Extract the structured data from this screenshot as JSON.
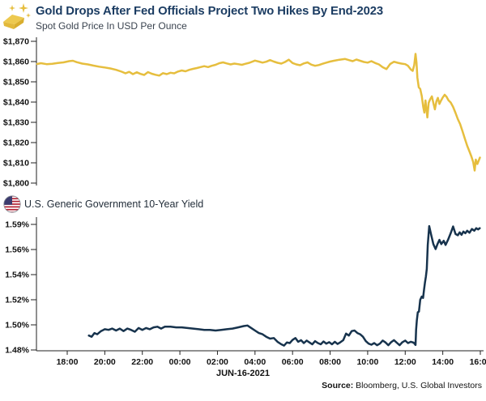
{
  "header": {
    "title": "Gold Drops After Fed Officials Project Two Hikes By End-2023",
    "subtitle": "Spot Gold Price In USD Per Ounce"
  },
  "yield_section": {
    "label": "U.S. Generic Government 10-Year Yield"
  },
  "footer": {
    "source_label": "Source:",
    "source_value": " Bloomberg, U.S. Global Investors"
  },
  "icons": {
    "gold_bar": "gold-bar-with-sparkles",
    "us_flag": "us-flag-round"
  },
  "colors": {
    "title_navy": "#1b3c62",
    "gold_line": "#E6BE3E",
    "yield_line": "#17334D",
    "axis": "#222222",
    "tick_text": "#111111",
    "flag_red": "#B22234",
    "flag_blue": "#3C3B6E"
  },
  "x_axis": {
    "tick_labels": [
      "18:00",
      "20:00",
      "22:00",
      "00:00",
      "02:00",
      "04:00",
      "06:00",
      "08:00",
      "10:00",
      "12:00",
      "14:00",
      "16:00"
    ],
    "tick_hours": [
      0,
      2,
      4,
      6,
      8,
      10,
      12,
      14,
      16,
      18,
      20,
      22
    ],
    "date_label": "JUN-16-2021",
    "note": "x unit = hours after 18:00 (prior evening); session runs to 16:00 on JUN-16-2021"
  },
  "chart_data": [
    {
      "type": "line",
      "slug": "gold-price",
      "name": "Spot Gold Price In USD Per Ounce",
      "unit": "USD per ounce",
      "color": "#E6BE3E",
      "ylim": [
        1800,
        1870
      ],
      "y_ticks": [
        {
          "label": "$1,870",
          "value": 1870
        },
        {
          "label": "$1,860",
          "value": 1860
        },
        {
          "label": "$1,850",
          "value": 1850
        },
        {
          "label": "$1,840",
          "value": 1840
        },
        {
          "label": "$1,830",
          "value": 1830
        },
        {
          "label": "$1,820",
          "value": 1820
        },
        {
          "label": "$1,810",
          "value": 1810
        },
        {
          "label": "$1,800",
          "value": 1800
        }
      ],
      "points": [
        [
          -1.6,
          1858.8
        ],
        [
          -1.4,
          1859.2
        ],
        [
          -1.1,
          1858.7
        ],
        [
          -0.8,
          1858.9
        ],
        [
          -0.5,
          1859.3
        ],
        [
          -0.2,
          1859.6
        ],
        [
          0.1,
          1860.2
        ],
        [
          0.3,
          1860.4
        ],
        [
          0.5,
          1859.7
        ],
        [
          0.8,
          1859.0
        ],
        [
          1.1,
          1858.6
        ],
        [
          1.4,
          1858.0
        ],
        [
          1.7,
          1857.5
        ],
        [
          2.0,
          1857.1
        ],
        [
          2.3,
          1856.6
        ],
        [
          2.6,
          1855.9
        ],
        [
          2.9,
          1855.0
        ],
        [
          3.1,
          1854.2
        ],
        [
          3.3,
          1854.9
        ],
        [
          3.5,
          1853.8
        ],
        [
          3.7,
          1854.7
        ],
        [
          3.9,
          1853.9
        ],
        [
          4.1,
          1853.4
        ],
        [
          4.3,
          1854.8
        ],
        [
          4.5,
          1854.0
        ],
        [
          4.7,
          1853.5
        ],
        [
          4.9,
          1853.1
        ],
        [
          5.1,
          1854.3
        ],
        [
          5.3,
          1853.8
        ],
        [
          5.5,
          1854.5
        ],
        [
          5.7,
          1854.2
        ],
        [
          5.9,
          1855.1
        ],
        [
          6.1,
          1855.6
        ],
        [
          6.3,
          1855.2
        ],
        [
          6.5,
          1855.9
        ],
        [
          6.7,
          1856.4
        ],
        [
          6.9,
          1856.8
        ],
        [
          7.1,
          1857.3
        ],
        [
          7.3,
          1857.7
        ],
        [
          7.5,
          1857.3
        ],
        [
          7.7,
          1857.9
        ],
        [
          7.9,
          1858.4
        ],
        [
          8.1,
          1859.2
        ],
        [
          8.3,
          1859.6
        ],
        [
          8.5,
          1859.1
        ],
        [
          8.7,
          1858.6
        ],
        [
          8.9,
          1859.0
        ],
        [
          9.1,
          1858.7
        ],
        [
          9.3,
          1858.4
        ],
        [
          9.5,
          1858.9
        ],
        [
          9.7,
          1859.4
        ],
        [
          10.0,
          1860.5
        ],
        [
          10.2,
          1860.0
        ],
        [
          10.4,
          1859.5
        ],
        [
          10.6,
          1859.9
        ],
        [
          10.8,
          1860.7
        ],
        [
          11.0,
          1860.0
        ],
        [
          11.2,
          1859.4
        ],
        [
          11.4,
          1859.0
        ],
        [
          11.6,
          1859.8
        ],
        [
          11.8,
          1860.9
        ],
        [
          12.0,
          1859.3
        ],
        [
          12.2,
          1858.6
        ],
        [
          12.4,
          1858.2
        ],
        [
          12.6,
          1859.1
        ],
        [
          12.8,
          1859.6
        ],
        [
          13.0,
          1858.5
        ],
        [
          13.2,
          1857.9
        ],
        [
          13.4,
          1858.3
        ],
        [
          13.6,
          1858.9
        ],
        [
          13.8,
          1859.5
        ],
        [
          14.0,
          1860.0
        ],
        [
          14.2,
          1860.4
        ],
        [
          14.5,
          1860.9
        ],
        [
          14.8,
          1861.3
        ],
        [
          15.0,
          1860.7
        ],
        [
          15.2,
          1860.2
        ],
        [
          15.4,
          1861.0
        ],
        [
          15.6,
          1860.4
        ],
        [
          15.8,
          1859.8
        ],
        [
          16.0,
          1859.5
        ],
        [
          16.2,
          1860.2
        ],
        [
          16.4,
          1859.3
        ],
        [
          16.6,
          1858.6
        ],
        [
          16.8,
          1857.2
        ],
        [
          17.0,
          1856.3
        ],
        [
          17.2,
          1858.8
        ],
        [
          17.4,
          1859.9
        ],
        [
          17.6,
          1859.4
        ],
        [
          17.8,
          1859.0
        ],
        [
          18.0,
          1858.7
        ],
        [
          18.15,
          1857.9
        ],
        [
          18.3,
          1856.1
        ],
        [
          18.4,
          1855.4
        ],
        [
          18.48,
          1858.3
        ],
        [
          18.55,
          1863.8
        ],
        [
          18.6,
          1859.5
        ],
        [
          18.65,
          1852.0
        ],
        [
          18.72,
          1847.3
        ],
        [
          18.8,
          1846.5
        ],
        [
          18.88,
          1843.0
        ],
        [
          18.96,
          1837.6
        ],
        [
          19.02,
          1834.8
        ],
        [
          19.08,
          1840.8
        ],
        [
          19.13,
          1836.2
        ],
        [
          19.18,
          1832.4
        ],
        [
          19.25,
          1839.6
        ],
        [
          19.33,
          1841.4
        ],
        [
          19.42,
          1842.8
        ],
        [
          19.5,
          1839.6
        ],
        [
          19.58,
          1836.4
        ],
        [
          19.66,
          1840.4
        ],
        [
          19.74,
          1842.1
        ],
        [
          19.82,
          1839.1
        ],
        [
          19.9,
          1840.6
        ],
        [
          20.0,
          1842.3
        ],
        [
          20.1,
          1843.6
        ],
        [
          20.2,
          1842.6
        ],
        [
          20.3,
          1840.9
        ],
        [
          20.42,
          1839.8
        ],
        [
          20.55,
          1837.6
        ],
        [
          20.68,
          1834.6
        ],
        [
          20.8,
          1831.6
        ],
        [
          20.92,
          1829.2
        ],
        [
          21.05,
          1825.6
        ],
        [
          21.18,
          1821.8
        ],
        [
          21.3,
          1818.4
        ],
        [
          21.42,
          1815.6
        ],
        [
          21.52,
          1813.2
        ],
        [
          21.62,
          1810.4
        ],
        [
          21.7,
          1806.2
        ],
        [
          21.76,
          1811.6
        ],
        [
          21.84,
          1809.4
        ],
        [
          21.92,
          1811.2
        ],
        [
          21.98,
          1812.6
        ]
      ]
    },
    {
      "type": "line",
      "slug": "ten-year-yield",
      "name": "U.S. Generic Government 10-Year Yield",
      "unit": "percent",
      "color": "#17334D",
      "ylim": [
        1.48,
        1.59
      ],
      "y_ticks": [
        {
          "label": "1.59%",
          "value": 1.59
        },
        {
          "label": "1.56%",
          "value": 1.56
        },
        {
          "label": "1.54%",
          "value": 1.54
        },
        {
          "label": "1.52%",
          "value": 1.52
        },
        {
          "label": "1.50%",
          "value": 1.5
        },
        {
          "label": "1.48%",
          "value": 1.48
        }
      ],
      "points": [
        [
          1.15,
          1.4915
        ],
        [
          1.3,
          1.4905
        ],
        [
          1.45,
          1.4935
        ],
        [
          1.6,
          1.4925
        ],
        [
          1.8,
          1.495
        ],
        [
          2.0,
          1.4965
        ],
        [
          2.2,
          1.496
        ],
        [
          2.4,
          1.497
        ],
        [
          2.6,
          1.4955
        ],
        [
          2.8,
          1.497
        ],
        [
          3.0,
          1.495
        ],
        [
          3.2,
          1.497
        ],
        [
          3.4,
          1.496
        ],
        [
          3.6,
          1.4945
        ],
        [
          3.8,
          1.4975
        ],
        [
          4.0,
          1.496
        ],
        [
          4.2,
          1.4975
        ],
        [
          4.4,
          1.4965
        ],
        [
          4.6,
          1.498
        ],
        [
          4.8,
          1.4985
        ],
        [
          5.0,
          1.497
        ],
        [
          5.2,
          1.4985
        ],
        [
          5.5,
          1.4985
        ],
        [
          5.8,
          1.498
        ],
        [
          6.1,
          1.498
        ],
        [
          6.4,
          1.4975
        ],
        [
          6.7,
          1.497
        ],
        [
          7.0,
          1.4965
        ],
        [
          7.3,
          1.496
        ],
        [
          7.6,
          1.496
        ],
        [
          7.9,
          1.4955
        ],
        [
          8.2,
          1.496
        ],
        [
          8.5,
          1.4965
        ],
        [
          8.8,
          1.497
        ],
        [
          9.1,
          1.498
        ],
        [
          9.4,
          1.499
        ],
        [
          9.6,
          1.4995
        ],
        [
          9.8,
          1.4975
        ],
        [
          10.0,
          1.4955
        ],
        [
          10.2,
          1.4935
        ],
        [
          10.4,
          1.4925
        ],
        [
          10.6,
          1.4905
        ],
        [
          10.8,
          1.489
        ],
        [
          11.0,
          1.4895
        ],
        [
          11.2,
          1.4865
        ],
        [
          11.4,
          1.4845
        ],
        [
          11.55,
          1.4835
        ],
        [
          11.7,
          1.486
        ],
        [
          11.85,
          1.4855
        ],
        [
          12.0,
          1.488
        ],
        [
          12.15,
          1.4895
        ],
        [
          12.3,
          1.4865
        ],
        [
          12.45,
          1.4878
        ],
        [
          12.6,
          1.4855
        ],
        [
          12.75,
          1.4875
        ],
        [
          12.9,
          1.486
        ],
        [
          13.05,
          1.4845
        ],
        [
          13.2,
          1.487
        ],
        [
          13.35,
          1.4855
        ],
        [
          13.5,
          1.4845
        ],
        [
          13.65,
          1.4868
        ],
        [
          13.8,
          1.485
        ],
        [
          13.95,
          1.4862
        ],
        [
          14.1,
          1.4845
        ],
        [
          14.25,
          1.4865
        ],
        [
          14.4,
          1.4848
        ],
        [
          14.55,
          1.4862
        ],
        [
          14.7,
          1.4878
        ],
        [
          14.85,
          1.493
        ],
        [
          15.0,
          1.4915
        ],
        [
          15.15,
          1.495
        ],
        [
          15.3,
          1.4955
        ],
        [
          15.45,
          1.4935
        ],
        [
          15.6,
          1.4925
        ],
        [
          15.75,
          1.4905
        ],
        [
          15.9,
          1.487
        ],
        [
          16.05,
          1.485
        ],
        [
          16.2,
          1.4842
        ],
        [
          16.35,
          1.4855
        ],
        [
          16.5,
          1.4838
        ],
        [
          16.65,
          1.485
        ],
        [
          16.8,
          1.4875
        ],
        [
          16.95,
          1.486
        ],
        [
          17.1,
          1.4838
        ],
        [
          17.25,
          1.4862
        ],
        [
          17.4,
          1.4878
        ],
        [
          17.55,
          1.4858
        ],
        [
          17.7,
          1.4838
        ],
        [
          17.85,
          1.4862
        ],
        [
          18.0,
          1.4875
        ],
        [
          18.15,
          1.4855
        ],
        [
          18.3,
          1.4865
        ],
        [
          18.45,
          1.4858
        ],
        [
          18.55,
          1.484
        ],
        [
          18.58,
          1.496
        ],
        [
          18.62,
          1.5035
        ],
        [
          18.67,
          1.51
        ],
        [
          18.73,
          1.5105
        ],
        [
          18.8,
          1.52
        ],
        [
          18.88,
          1.5225
        ],
        [
          18.95,
          1.5215
        ],
        [
          19.0,
          1.528
        ],
        [
          19.05,
          1.5335
        ],
        [
          19.1,
          1.5385
        ],
        [
          19.15,
          1.5445
        ],
        [
          19.2,
          1.5655
        ],
        [
          19.28,
          1.588
        ],
        [
          19.38,
          1.5775
        ],
        [
          19.5,
          1.5665
        ],
        [
          19.62,
          1.5605
        ],
        [
          19.72,
          1.5665
        ],
        [
          19.82,
          1.5715
        ],
        [
          19.92,
          1.5665
        ],
        [
          20.05,
          1.5705
        ],
        [
          20.15,
          1.5655
        ],
        [
          20.28,
          1.5715
        ],
        [
          20.42,
          1.5795
        ],
        [
          20.55,
          1.5875
        ],
        [
          20.68,
          1.5785
        ],
        [
          20.8,
          1.577
        ],
        [
          20.9,
          1.5805
        ],
        [
          21.0,
          1.5775
        ],
        [
          21.1,
          1.5815
        ],
        [
          21.2,
          1.5795
        ],
        [
          21.3,
          1.5825
        ],
        [
          21.42,
          1.58
        ],
        [
          21.55,
          1.5845
        ],
        [
          21.68,
          1.5825
        ],
        [
          21.78,
          1.5855
        ],
        [
          21.88,
          1.584
        ],
        [
          21.97,
          1.5855
        ]
      ]
    }
  ]
}
